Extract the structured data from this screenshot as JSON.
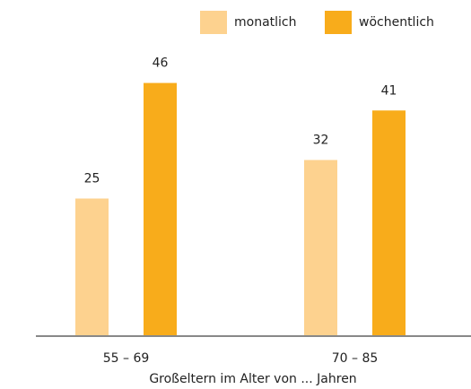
{
  "chart_data": {
    "type": "bar",
    "x_label": "Großeltern im Alter von ... Jahren",
    "categories": [
      "55 – 69",
      "70 – 85"
    ],
    "series": [
      {
        "name": "monatlich",
        "color": "#fdd28f",
        "values": [
          25,
          32
        ]
      },
      {
        "name": "wöchentlich",
        "color": "#f8ac1b",
        "values": [
          46,
          41
        ]
      }
    ]
  }
}
